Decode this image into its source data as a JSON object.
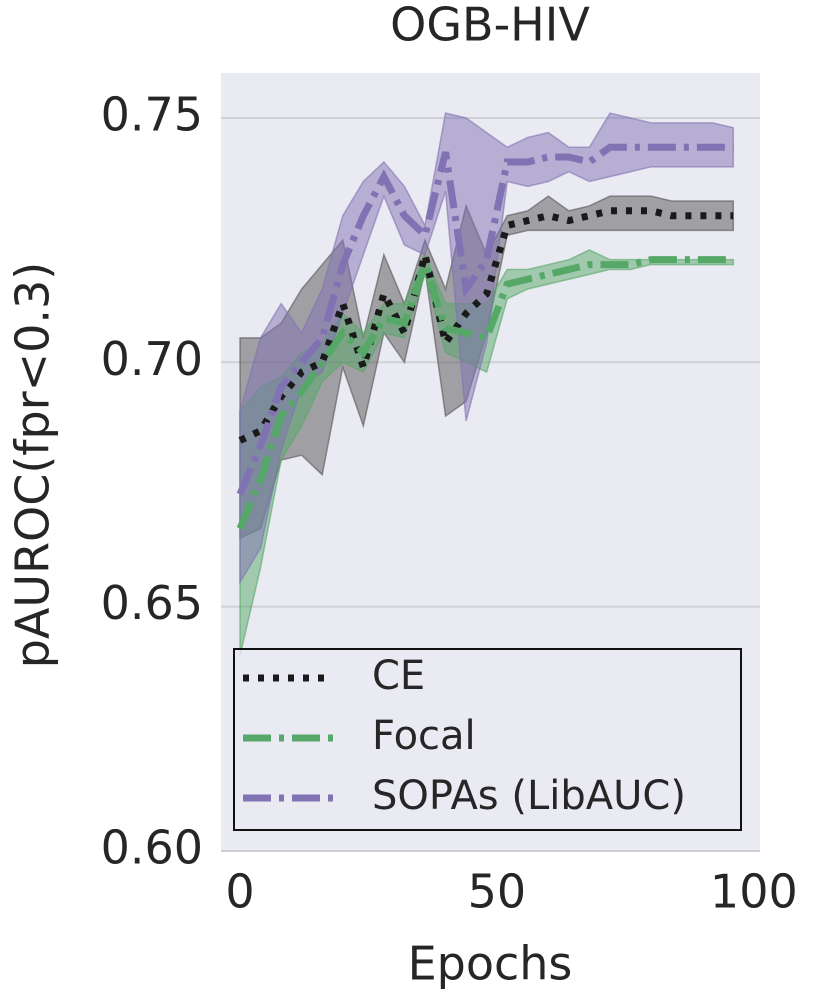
{
  "chart_data": {
    "type": "line",
    "title": "OGB-HIV",
    "xlabel": "Epochs",
    "ylabel": "pAUROC(fpr<0.3)",
    "x": [
      0,
      4,
      8,
      12,
      16,
      20,
      24,
      28,
      32,
      36,
      40,
      44,
      48,
      52,
      56,
      60,
      64,
      68,
      72,
      76,
      80,
      84,
      88,
      92,
      96
    ],
    "xlim": [
      -3.7,
      101.2
    ],
    "xticks": [
      0,
      50,
      100
    ],
    "ylim": [
      0.6,
      0.7592
    ],
    "yticks": [
      {
        "value": 0.6,
        "label": "0.60"
      },
      {
        "value": 0.65,
        "label": "0.65"
      },
      {
        "value": 0.7,
        "label": "0.70"
      },
      {
        "value": 0.75,
        "label": "0.75"
      }
    ],
    "grid": true,
    "legend": "lower left",
    "series": [
      {
        "name": "CE",
        "color": "#1a1a1a",
        "band_color": "#555555",
        "dash": "dotted",
        "values": [
          0.684,
          0.686,
          0.693,
          0.698,
          0.7,
          0.712,
          0.699,
          0.714,
          0.706,
          0.722,
          0.704,
          0.71,
          0.714,
          0.728,
          0.729,
          0.73,
          0.729,
          0.73,
          0.731,
          0.731,
          0.731,
          0.73,
          0.73,
          0.73,
          0.73
        ],
        "upper": [
          0.705,
          0.705,
          0.708,
          0.715,
          0.72,
          0.725,
          0.705,
          0.722,
          0.712,
          0.725,
          0.715,
          0.732,
          0.722,
          0.73,
          0.731,
          0.734,
          0.731,
          0.732,
          0.734,
          0.734,
          0.734,
          0.733,
          0.733,
          0.733,
          0.733
        ],
        "lower": [
          0.664,
          0.666,
          0.68,
          0.681,
          0.677,
          0.699,
          0.687,
          0.706,
          0.7,
          0.719,
          0.689,
          0.692,
          0.706,
          0.726,
          0.727,
          0.727,
          0.727,
          0.727,
          0.727,
          0.727,
          0.727,
          0.727,
          0.727,
          0.727,
          0.727
        ]
      },
      {
        "name": "Focal",
        "color": "#55a868",
        "band_color": "#55a868",
        "dash": "dashdot",
        "values": [
          0.666,
          0.676,
          0.689,
          0.694,
          0.7,
          0.706,
          0.702,
          0.709,
          0.708,
          0.72,
          0.707,
          0.706,
          0.705,
          0.716,
          0.717,
          0.718,
          0.719,
          0.72,
          0.72,
          0.72,
          0.721,
          0.721,
          0.721,
          0.721,
          0.721
        ],
        "upper": [
          0.69,
          0.695,
          0.697,
          0.702,
          0.704,
          0.71,
          0.706,
          0.712,
          0.712,
          0.722,
          0.712,
          0.712,
          0.712,
          0.719,
          0.719,
          0.72,
          0.721,
          0.723,
          0.721,
          0.721,
          0.721,
          0.721,
          0.721,
          0.721,
          0.721
        ],
        "lower": [
          0.64,
          0.658,
          0.68,
          0.687,
          0.696,
          0.7,
          0.698,
          0.706,
          0.705,
          0.718,
          0.702,
          0.7,
          0.698,
          0.713,
          0.715,
          0.716,
          0.717,
          0.718,
          0.719,
          0.719,
          0.72,
          0.72,
          0.72,
          0.72,
          0.72
        ]
      },
      {
        "name": "SOPAs (LibAUC)",
        "color": "#8172b3",
        "band_color": "#8172b3",
        "dash": "dashdot",
        "values": [
          0.673,
          0.683,
          0.695,
          0.7,
          0.705,
          0.72,
          0.73,
          0.738,
          0.73,
          0.726,
          0.743,
          0.715,
          0.721,
          0.741,
          0.741,
          0.742,
          0.742,
          0.741,
          0.744,
          0.744,
          0.744,
          0.744,
          0.744,
          0.744,
          0.744
        ],
        "upper": [
          0.69,
          0.705,
          0.712,
          0.706,
          0.715,
          0.73,
          0.737,
          0.741,
          0.736,
          0.728,
          0.751,
          0.75,
          0.747,
          0.744,
          0.746,
          0.747,
          0.744,
          0.744,
          0.751,
          0.75,
          0.749,
          0.749,
          0.749,
          0.749,
          0.748
        ],
        "lower": [
          0.655,
          0.662,
          0.682,
          0.695,
          0.698,
          0.71,
          0.722,
          0.734,
          0.724,
          0.722,
          0.735,
          0.688,
          0.704,
          0.737,
          0.736,
          0.737,
          0.739,
          0.737,
          0.738,
          0.739,
          0.74,
          0.74,
          0.74,
          0.74,
          0.74
        ]
      }
    ]
  }
}
